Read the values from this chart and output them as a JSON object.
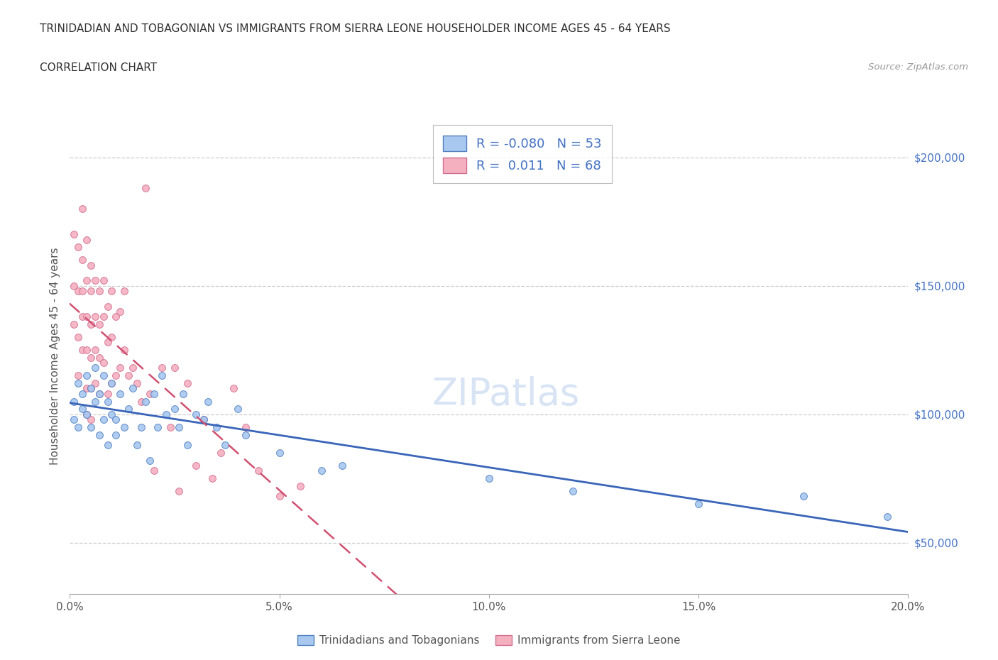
{
  "title": "TRINIDADIAN AND TOBAGONIAN VS IMMIGRANTS FROM SIERRA LEONE HOUSEHOLDER INCOME AGES 45 - 64 YEARS",
  "subtitle": "CORRELATION CHART",
  "source": "Source: ZipAtlas.com",
  "ylabel": "Householder Income Ages 45 - 64 years",
  "xmin": 0.0,
  "xmax": 0.2,
  "ymin": 30000,
  "ymax": 215000,
  "blue_R": -0.08,
  "blue_N": 53,
  "pink_R": 0.011,
  "pink_N": 68,
  "blue_color": "#a8c8f0",
  "pink_color": "#f5b0c0",
  "blue_edge_color": "#5080c0",
  "pink_edge_color": "#d07090",
  "blue_line_color": "#3a65b8",
  "pink_line_color": "#d05070",
  "grid_color": "#cccccc",
  "background_color": "#ffffff",
  "blue_scatter_x": [
    0.001,
    0.001,
    0.002,
    0.002,
    0.003,
    0.003,
    0.004,
    0.004,
    0.005,
    0.005,
    0.006,
    0.006,
    0.007,
    0.007,
    0.008,
    0.008,
    0.009,
    0.009,
    0.01,
    0.01,
    0.011,
    0.011,
    0.012,
    0.013,
    0.014,
    0.015,
    0.016,
    0.017,
    0.018,
    0.019,
    0.02,
    0.021,
    0.022,
    0.023,
    0.025,
    0.026,
    0.027,
    0.028,
    0.03,
    0.032,
    0.033,
    0.035,
    0.037,
    0.04,
    0.042,
    0.05,
    0.06,
    0.065,
    0.1,
    0.12,
    0.15,
    0.175,
    0.195
  ],
  "blue_scatter_y": [
    105000,
    98000,
    112000,
    95000,
    108000,
    102000,
    115000,
    100000,
    110000,
    95000,
    118000,
    105000,
    108000,
    92000,
    115000,
    98000,
    105000,
    88000,
    112000,
    100000,
    98000,
    92000,
    108000,
    95000,
    102000,
    110000,
    88000,
    95000,
    105000,
    82000,
    108000,
    95000,
    115000,
    100000,
    102000,
    95000,
    108000,
    88000,
    100000,
    98000,
    105000,
    95000,
    88000,
    102000,
    92000,
    85000,
    78000,
    80000,
    75000,
    70000,
    65000,
    68000,
    60000
  ],
  "pink_scatter_x": [
    0.001,
    0.001,
    0.001,
    0.002,
    0.002,
    0.002,
    0.002,
    0.003,
    0.003,
    0.003,
    0.003,
    0.003,
    0.004,
    0.004,
    0.004,
    0.004,
    0.004,
    0.004,
    0.005,
    0.005,
    0.005,
    0.005,
    0.005,
    0.005,
    0.006,
    0.006,
    0.006,
    0.006,
    0.007,
    0.007,
    0.007,
    0.007,
    0.008,
    0.008,
    0.008,
    0.009,
    0.009,
    0.009,
    0.01,
    0.01,
    0.01,
    0.011,
    0.011,
    0.012,
    0.012,
    0.013,
    0.013,
    0.014,
    0.015,
    0.016,
    0.017,
    0.018,
    0.019,
    0.02,
    0.022,
    0.024,
    0.025,
    0.026,
    0.028,
    0.03,
    0.032,
    0.034,
    0.036,
    0.039,
    0.042,
    0.045,
    0.05,
    0.055
  ],
  "pink_scatter_y": [
    170000,
    150000,
    135000,
    165000,
    148000,
    130000,
    115000,
    180000,
    160000,
    148000,
    138000,
    125000,
    168000,
    152000,
    138000,
    125000,
    110000,
    100000,
    158000,
    148000,
    135000,
    122000,
    110000,
    98000,
    152000,
    138000,
    125000,
    112000,
    148000,
    135000,
    122000,
    108000,
    152000,
    138000,
    120000,
    142000,
    128000,
    108000,
    148000,
    130000,
    112000,
    138000,
    115000,
    140000,
    118000,
    148000,
    125000,
    115000,
    118000,
    112000,
    105000,
    188000,
    108000,
    78000,
    118000,
    95000,
    118000,
    70000,
    112000,
    80000,
    98000,
    75000,
    85000,
    110000,
    95000,
    78000,
    68000,
    72000
  ],
  "yticks": [
    50000,
    100000,
    150000,
    200000
  ],
  "ytick_labels": [
    "$50,000",
    "$100,000",
    "$150,000",
    "$200,000"
  ],
  "xticks": [
    0.0,
    0.05,
    0.1,
    0.15,
    0.2
  ],
  "xtick_labels": [
    "0.0%",
    "5.0%",
    "10.0%",
    "15.0%",
    "20.0%"
  ]
}
